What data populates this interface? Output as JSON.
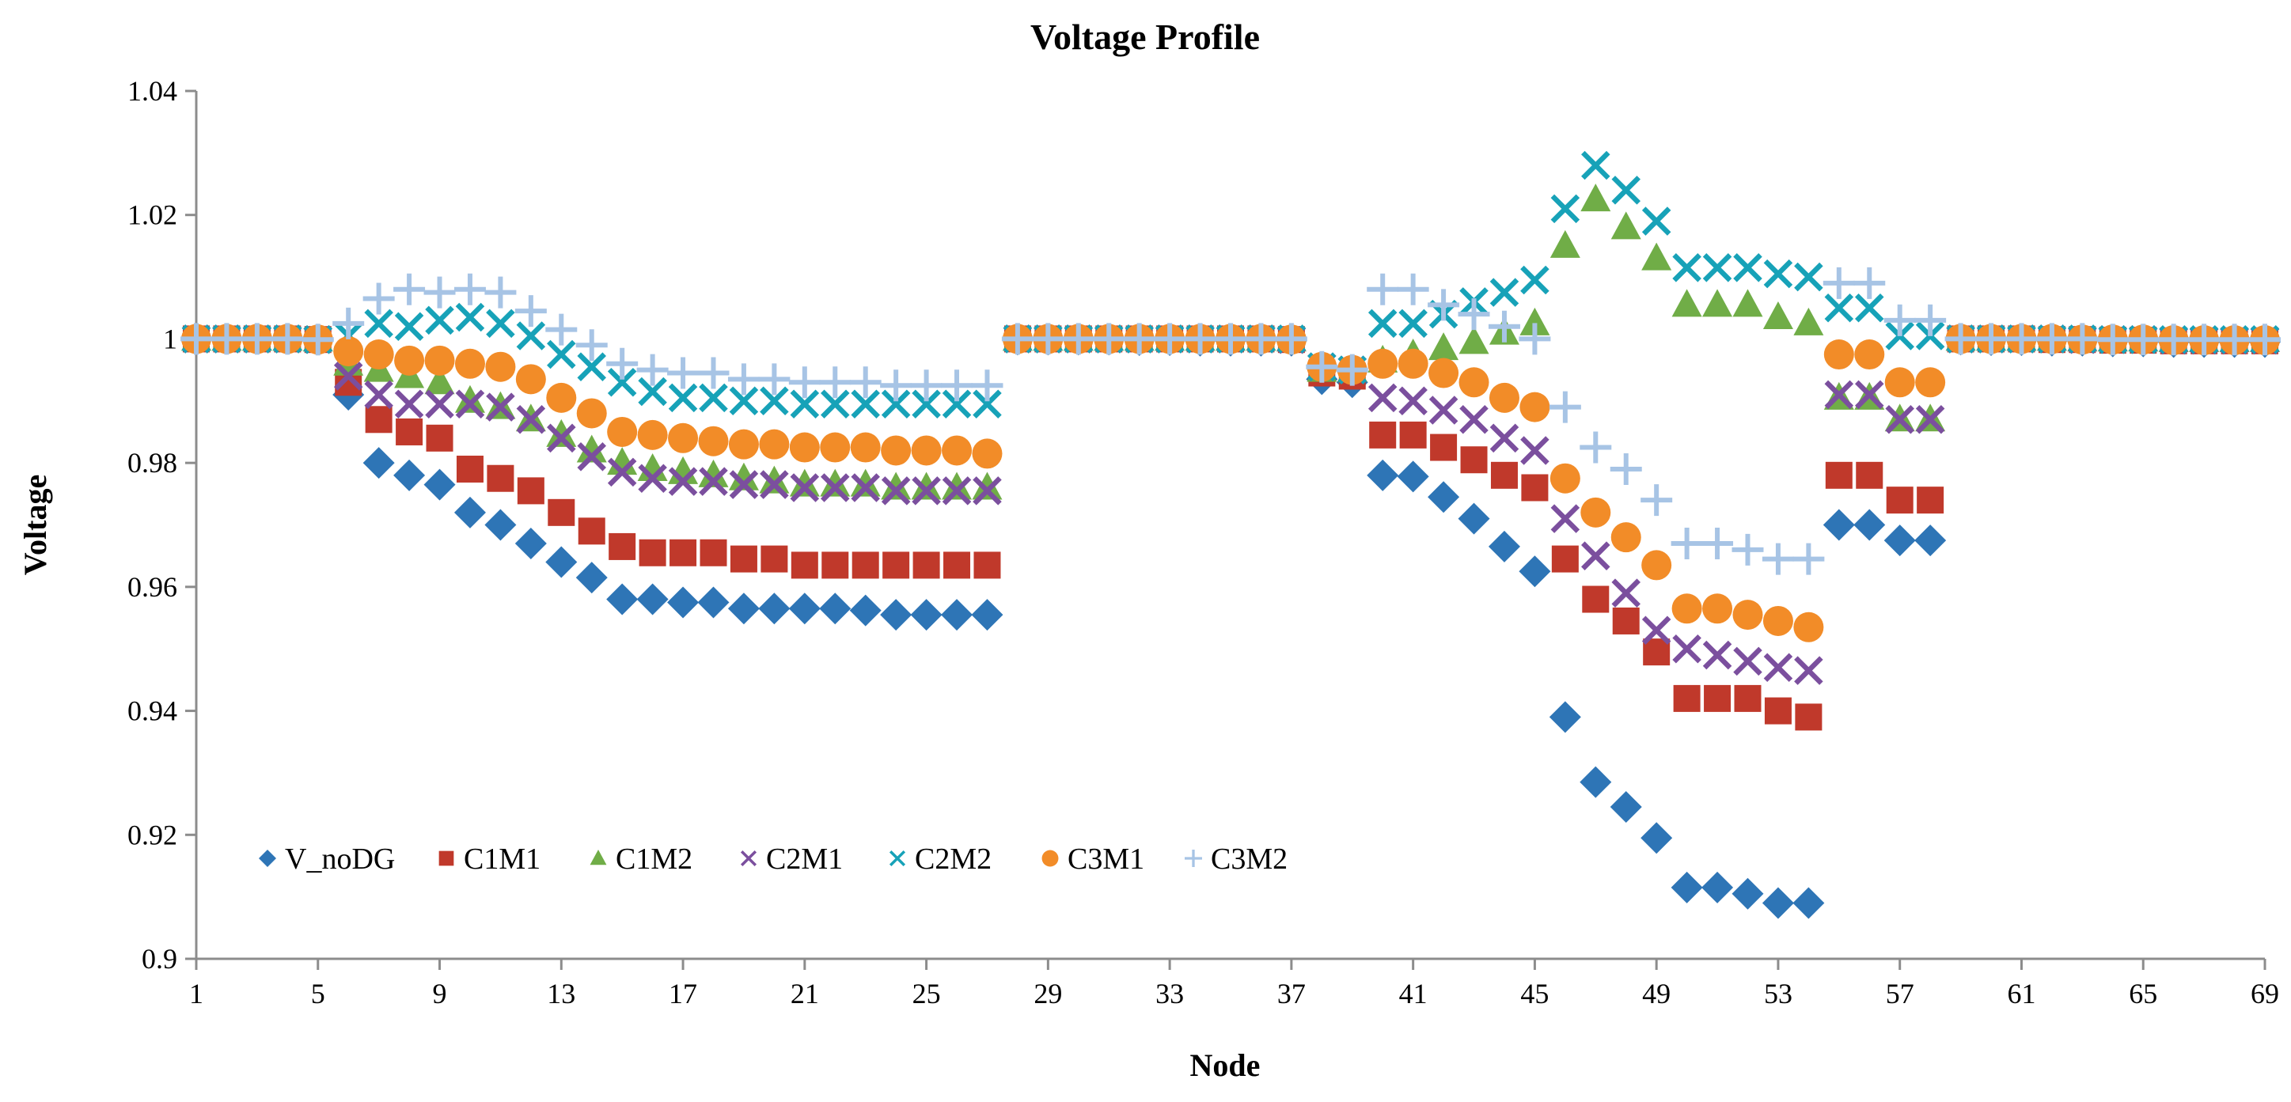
{
  "chart_data": {
    "type": "scatter",
    "title": "Voltage Profile",
    "xlabel": "Node",
    "ylabel": "Voltage",
    "xlim": [
      1,
      69
    ],
    "ylim": [
      0.9,
      1.04
    ],
    "x_ticks": [
      "1",
      "5",
      "9",
      "13",
      "17",
      "21",
      "25",
      "29",
      "33",
      "37",
      "41",
      "45",
      "49",
      "53",
      "57",
      "61",
      "65",
      "69"
    ],
    "y_ticks": [
      "0.9",
      "0.92",
      "0.94",
      "0.96",
      "0.98",
      "1",
      "1.02",
      "1.04"
    ],
    "grid": false,
    "legend_position": "lower-left",
    "x": [
      1,
      2,
      3,
      4,
      5,
      6,
      7,
      8,
      9,
      10,
      11,
      12,
      13,
      14,
      15,
      16,
      17,
      18,
      19,
      20,
      21,
      22,
      23,
      24,
      25,
      26,
      27,
      28,
      29,
      30,
      31,
      32,
      33,
      34,
      35,
      36,
      37,
      38,
      39,
      40,
      41,
      42,
      43,
      44,
      45,
      46,
      47,
      48,
      49,
      50,
      51,
      52,
      53,
      54,
      55,
      56,
      57,
      58,
      59,
      60,
      61,
      62,
      63,
      64,
      65,
      66,
      67,
      68,
      69
    ],
    "series": [
      {
        "name": "V_noDG",
        "color": "#2E75B6",
        "marker": "diamond",
        "values": [
          1.0,
          1.0,
          1.0,
          1.0,
          0.9999,
          0.991,
          0.98,
          0.978,
          0.9765,
          0.972,
          0.97,
          0.967,
          0.964,
          0.9615,
          0.958,
          0.958,
          0.9575,
          0.9575,
          0.9565,
          0.9565,
          0.9565,
          0.9565,
          0.9562,
          0.9555,
          0.9555,
          0.9555,
          0.9555,
          0.9999,
          0.9999,
          0.9999,
          0.9999,
          0.9998,
          0.9998,
          0.9997,
          0.9997,
          0.9997,
          0.9997,
          0.9935,
          0.993,
          0.978,
          0.9778,
          0.9745,
          0.971,
          0.9665,
          0.9625,
          0.939,
          0.9285,
          0.9245,
          0.9195,
          0.9115,
          0.9115,
          0.9105,
          0.909,
          0.909,
          0.97,
          0.97,
          0.9675,
          0.9675,
          0.9999,
          0.9998,
          0.9998,
          0.9997,
          0.9997,
          0.9996,
          0.9996,
          0.9995,
          0.9995,
          0.9995,
          0.9995
        ]
      },
      {
        "name": "C1M1",
        "color": "#C0392B",
        "marker": "square",
        "values": [
          1.0,
          1.0,
          1.0,
          1.0,
          0.9999,
          0.993,
          0.987,
          0.985,
          0.984,
          0.979,
          0.9775,
          0.9755,
          0.972,
          0.969,
          0.9665,
          0.9655,
          0.9655,
          0.9655,
          0.9645,
          0.9645,
          0.9635,
          0.9635,
          0.9635,
          0.9635,
          0.9635,
          0.9635,
          0.9635,
          1.0,
          1.0,
          1.0,
          1.0,
          1.0,
          1.0,
          1.0,
          1.0,
          1.0,
          0.9999,
          0.9945,
          0.994,
          0.9845,
          0.9845,
          0.9825,
          0.9805,
          0.978,
          0.976,
          0.9645,
          0.958,
          0.9545,
          0.9495,
          0.942,
          0.942,
          0.942,
          0.94,
          0.939,
          0.978,
          0.978,
          0.974,
          0.974,
          1.0,
          1.0,
          1.0,
          0.9999,
          0.9999,
          0.9998,
          0.9998,
          0.9997,
          0.9997,
          0.9997,
          0.9997
        ]
      },
      {
        "name": "C1M2",
        "color": "#70AD47",
        "marker": "triangle",
        "values": [
          1.0,
          1.0,
          1.0,
          1.0,
          0.9999,
          0.996,
          0.995,
          0.994,
          0.993,
          0.99,
          0.989,
          0.987,
          0.9845,
          0.982,
          0.98,
          0.979,
          0.9785,
          0.978,
          0.9775,
          0.977,
          0.9765,
          0.9765,
          0.9765,
          0.976,
          0.976,
          0.976,
          0.976,
          1.0,
          1.0,
          1.0,
          1.0,
          1.0,
          1.0,
          1.0,
          1.0,
          1.0,
          0.9999,
          0.995,
          0.995,
          0.9965,
          0.9975,
          0.9985,
          0.9995,
          1.001,
          1.0025,
          1.015,
          1.0225,
          1.018,
          1.013,
          1.0055,
          1.0055,
          1.0055,
          1.0035,
          1.0025,
          0.9905,
          0.9905,
          0.987,
          0.987,
          1.0,
          1.0,
          1.0,
          1.0,
          0.9999,
          0.9999,
          0.9999,
          0.9998,
          0.9998,
          0.9998,
          0.9998
        ]
      },
      {
        "name": "C2M1",
        "color": "#7B4F9E",
        "marker": "x",
        "values": [
          1.0,
          1.0,
          1.0,
          1.0,
          0.9999,
          0.994,
          0.991,
          0.9895,
          0.9895,
          0.9895,
          0.989,
          0.987,
          0.984,
          0.981,
          0.9785,
          0.9775,
          0.977,
          0.977,
          0.9765,
          0.9765,
          0.976,
          0.976,
          0.976,
          0.9755,
          0.9755,
          0.9755,
          0.9755,
          1.0,
          1.0,
          1.0,
          1.0,
          1.0,
          1.0,
          1.0,
          1.0,
          1.0,
          0.9999,
          0.9955,
          0.995,
          0.9905,
          0.99,
          0.9885,
          0.987,
          0.984,
          0.982,
          0.971,
          0.965,
          0.959,
          0.953,
          0.95,
          0.949,
          0.948,
          0.947,
          0.9465,
          0.991,
          0.991,
          0.987,
          0.987,
          1.0,
          1.0,
          1.0,
          1.0,
          0.9999,
          0.9999,
          0.9999,
          0.9998,
          0.9998,
          0.9998,
          0.9998
        ]
      },
      {
        "name": "C2M2",
        "color": "#17A2B8",
        "marker": "x",
        "values": [
          1.0,
          1.0,
          1.0,
          1.0,
          0.9999,
          1.0005,
          1.0025,
          1.002,
          1.003,
          1.0035,
          1.0025,
          1.0005,
          0.9975,
          0.9955,
          0.993,
          0.9915,
          0.9905,
          0.9905,
          0.99,
          0.99,
          0.9895,
          0.9895,
          0.9895,
          0.9895,
          0.9895,
          0.9895,
          0.9895,
          1.0,
          1.0,
          1.0,
          1.0,
          1.0,
          1.0,
          1.0,
          1.0,
          1.0,
          1.0,
          0.9955,
          0.995,
          1.0025,
          1.0025,
          1.004,
          1.006,
          1.0075,
          1.0095,
          1.021,
          1.028,
          1.024,
          1.019,
          1.0115,
          1.0115,
          1.0115,
          1.0105,
          1.01,
          1.005,
          1.005,
          1.0005,
          1.0005,
          1.0,
          1.0,
          1.0,
          1.0,
          1.0,
          0.9999,
          0.9999,
          0.9999,
          0.9999,
          0.9999,
          0.9999
        ]
      },
      {
        "name": "C3M1",
        "color": "#F28C28",
        "marker": "circle",
        "values": [
          1.0,
          1.0,
          1.0,
          1.0,
          0.9999,
          0.998,
          0.9975,
          0.9965,
          0.9965,
          0.996,
          0.9955,
          0.9935,
          0.9905,
          0.988,
          0.985,
          0.9845,
          0.984,
          0.9835,
          0.983,
          0.983,
          0.9825,
          0.9825,
          0.9825,
          0.982,
          0.982,
          0.982,
          0.9815,
          1.0,
          1.0,
          1.0,
          1.0,
          1.0,
          1.0,
          1.0,
          1.0,
          1.0,
          0.9999,
          0.9955,
          0.995,
          0.996,
          0.996,
          0.9945,
          0.993,
          0.9905,
          0.989,
          0.9775,
          0.972,
          0.968,
          0.9635,
          0.9565,
          0.9565,
          0.9555,
          0.9545,
          0.9535,
          0.9975,
          0.9975,
          0.993,
          0.993,
          1.0,
          1.0,
          1.0,
          1.0,
          0.9999,
          0.9999,
          0.9999,
          0.9998,
          0.9998,
          0.9998,
          0.9998
        ]
      },
      {
        "name": "C3M2",
        "color": "#A7C4E5",
        "marker": "plus",
        "values": [
          1.0,
          1.0,
          1.0,
          1.0,
          0.9999,
          1.0025,
          1.0065,
          1.008,
          1.0075,
          1.008,
          1.0075,
          1.0045,
          1.0015,
          0.999,
          0.996,
          0.995,
          0.9945,
          0.9945,
          0.9935,
          0.9935,
          0.993,
          0.993,
          0.993,
          0.9925,
          0.9925,
          0.9925,
          0.9925,
          1.0,
          1.0,
          1.0,
          1.0,
          1.0,
          1.0,
          1.0,
          1.0,
          1.0,
          1.0,
          0.9955,
          0.995,
          1.008,
          1.008,
          1.0055,
          1.004,
          1.002,
          1.0,
          0.989,
          0.9825,
          0.979,
          0.974,
          0.967,
          0.967,
          0.966,
          0.9645,
          0.9645,
          1.009,
          1.009,
          1.003,
          1.003,
          1.0,
          1.0,
          1.0,
          1.0,
          1.0,
          0.9999,
          0.9999,
          0.9999,
          0.9999,
          0.9999,
          0.9999
        ]
      }
    ]
  }
}
